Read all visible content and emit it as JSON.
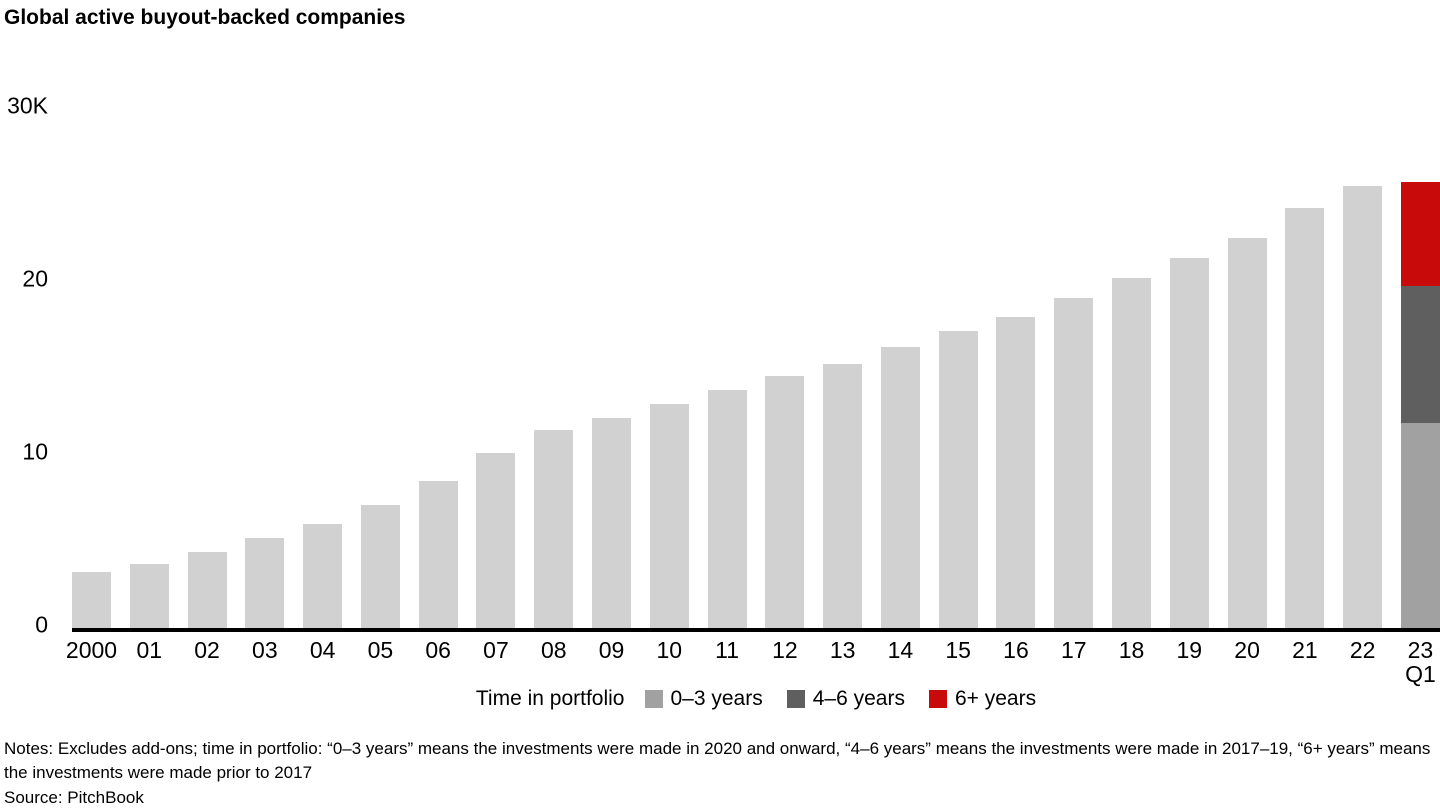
{
  "title": "Global active buyout-backed companies",
  "notes": "Notes: Excludes add-ons; time in portfolio: “0–3 years” means the investments were made in 2020 and onward, “4–6 years” means the investments were made in 2017–19, “6+ years” means the investments were made prior to 2017",
  "source": "Source: PitchBook",
  "colors": {
    "bar_default": "#d1d1d1",
    "segment_0_3_years": "#a1a1a1",
    "segment_4_6_years": "#5f5f5f",
    "segment_6_plus_years": "#c80a0a",
    "axis": "#000000"
  },
  "chart_data": {
    "type": "bar",
    "stacked": true,
    "title": "Global active buyout-backed companies",
    "xlabel": "",
    "ylabel": "",
    "y_unit": "K (thousands of companies)",
    "ylim": [
      0,
      30
    ],
    "grid": false,
    "y_ticks": [
      {
        "value": 0,
        "text": "0"
      },
      {
        "value": 10,
        "text": "10"
      },
      {
        "value": 20,
        "text": "20"
      },
      {
        "value": 30,
        "text": "30K"
      }
    ],
    "legend": {
      "title": "Time in portfolio",
      "position": "bottom",
      "entries": [
        {
          "label": "0–3 years",
          "color": "#a1a1a1"
        },
        {
          "label": "4–6 years",
          "color": "#5f5f5f"
        },
        {
          "label": "6+ years",
          "color": "#c80a0a"
        }
      ]
    },
    "categories": [
      "2000",
      "01",
      "02",
      "03",
      "04",
      "05",
      "06",
      "07",
      "08",
      "09",
      "10",
      "11",
      "12",
      "13",
      "14",
      "15",
      "16",
      "17",
      "18",
      "19",
      "20",
      "21",
      "22",
      "23 Q1"
    ],
    "bars": [
      {
        "label": "2000",
        "segments": [
          {
            "series": "total",
            "value": 3.2,
            "color": "#d1d1d1"
          }
        ]
      },
      {
        "label": "01",
        "segments": [
          {
            "series": "total",
            "value": 3.7,
            "color": "#d1d1d1"
          }
        ]
      },
      {
        "label": "02",
        "segments": [
          {
            "series": "total",
            "value": 4.4,
            "color": "#d1d1d1"
          }
        ]
      },
      {
        "label": "03",
        "segments": [
          {
            "series": "total",
            "value": 5.2,
            "color": "#d1d1d1"
          }
        ]
      },
      {
        "label": "04",
        "segments": [
          {
            "series": "total",
            "value": 6.0,
            "color": "#d1d1d1"
          }
        ]
      },
      {
        "label": "05",
        "segments": [
          {
            "series": "total",
            "value": 7.1,
            "color": "#d1d1d1"
          }
        ]
      },
      {
        "label": "06",
        "segments": [
          {
            "series": "total",
            "value": 8.5,
            "color": "#d1d1d1"
          }
        ]
      },
      {
        "label": "07",
        "segments": [
          {
            "series": "total",
            "value": 10.1,
            "color": "#d1d1d1"
          }
        ]
      },
      {
        "label": "08",
        "segments": [
          {
            "series": "total",
            "value": 11.4,
            "color": "#d1d1d1"
          }
        ]
      },
      {
        "label": "09",
        "segments": [
          {
            "series": "total",
            "value": 12.1,
            "color": "#d1d1d1"
          }
        ]
      },
      {
        "label": "10",
        "segments": [
          {
            "series": "total",
            "value": 12.9,
            "color": "#d1d1d1"
          }
        ]
      },
      {
        "label": "11",
        "segments": [
          {
            "series": "total",
            "value": 13.7,
            "color": "#d1d1d1"
          }
        ]
      },
      {
        "label": "12",
        "segments": [
          {
            "series": "total",
            "value": 14.5,
            "color": "#d1d1d1"
          }
        ]
      },
      {
        "label": "13",
        "segments": [
          {
            "series": "total",
            "value": 15.2,
            "color": "#d1d1d1"
          }
        ]
      },
      {
        "label": "14",
        "segments": [
          {
            "series": "total",
            "value": 16.2,
            "color": "#d1d1d1"
          }
        ]
      },
      {
        "label": "15",
        "segments": [
          {
            "series": "total",
            "value": 17.1,
            "color": "#d1d1d1"
          }
        ]
      },
      {
        "label": "16",
        "segments": [
          {
            "series": "total",
            "value": 17.9,
            "color": "#d1d1d1"
          }
        ]
      },
      {
        "label": "17",
        "segments": [
          {
            "series": "total",
            "value": 19.0,
            "color": "#d1d1d1"
          }
        ]
      },
      {
        "label": "18",
        "segments": [
          {
            "series": "total",
            "value": 20.2,
            "color": "#d1d1d1"
          }
        ]
      },
      {
        "label": "19",
        "segments": [
          {
            "series": "total",
            "value": 21.3,
            "color": "#d1d1d1"
          }
        ]
      },
      {
        "label": "20",
        "segments": [
          {
            "series": "total",
            "value": 22.5,
            "color": "#d1d1d1"
          }
        ]
      },
      {
        "label": "21",
        "segments": [
          {
            "series": "total",
            "value": 24.2,
            "color": "#d1d1d1"
          }
        ]
      },
      {
        "label": "22",
        "segments": [
          {
            "series": "total",
            "value": 25.5,
            "color": "#d1d1d1"
          }
        ]
      },
      {
        "label": "23",
        "sublabel": "Q1",
        "segments": [
          {
            "series": "0–3 years",
            "value": 11.8,
            "color": "#a1a1a1"
          },
          {
            "series": "4–6 years",
            "value": 7.9,
            "color": "#5f5f5f"
          },
          {
            "series": "6+ years",
            "value": 6.0,
            "color": "#c80a0a"
          }
        ]
      }
    ]
  }
}
